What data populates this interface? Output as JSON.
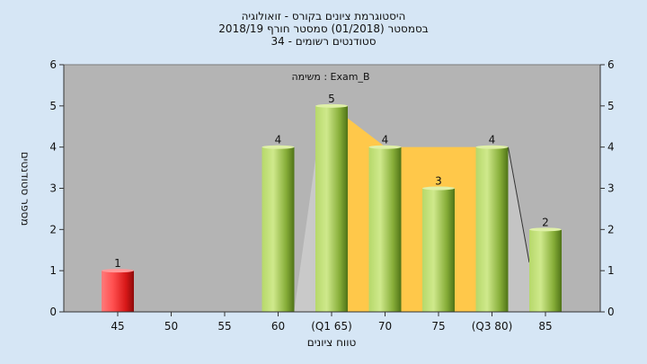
{
  "chart_data": {
    "type": "bar",
    "title_lines": [
      "היסטוגרמת ציונים בקורס - זואולוגיה",
      "בסמסטר  (01/2018)  סמסטר חורף 2018/19",
      "סטודנטים רשומים - 34"
    ],
    "annotation": "משימה : Exam_B",
    "xlabel": "טווח ציונים",
    "ylabel": "מספר סטודנטים",
    "ylim": [
      0,
      6
    ],
    "yticks": [
      0,
      1,
      2,
      3,
      4,
      5,
      6
    ],
    "grid": false,
    "categories": [
      "45",
      "50",
      "55",
      "60",
      "(Q1 65)",
      "70",
      "75",
      "(Q3 80)",
      "85"
    ],
    "values": [
      1,
      0,
      0,
      4,
      5,
      4,
      3,
      4,
      2
    ],
    "bar_colors": [
      "#e02020",
      "#8fb83a",
      "#8fb83a",
      "#8fb83a",
      "#8fb83a",
      "#8fb83a",
      "#8fb83a",
      "#8fb83a",
      "#8fb83a"
    ],
    "iqr_band": {
      "from": "(Q1 65)",
      "to": "(Q3 80)",
      "color": "#ffc84a"
    },
    "background": {
      "plot": "#b4b4b4",
      "page": "#d6e6f5"
    }
  }
}
